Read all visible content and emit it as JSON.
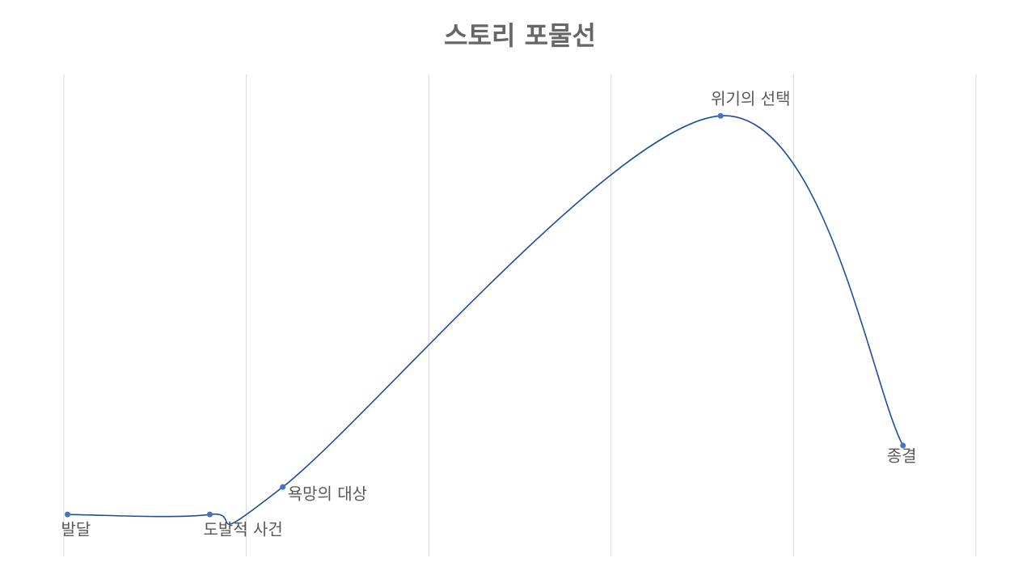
{
  "chart_data": {
    "type": "scatter",
    "title": "스토리 포물선",
    "xlim": [
      0,
      5
    ],
    "xticks": [
      0,
      1,
      2,
      3,
      4,
      5
    ],
    "ylim": [
      0,
      10
    ],
    "grid": true,
    "series": [
      {
        "color": "#1f4e99",
        "marker_color": "#4472c4",
        "x": [
          0.02,
          0.8,
          1.2,
          3.6,
          4.6
        ],
        "values": [
          0.87,
          0.87,
          1.44,
          9.14,
          2.3
        ],
        "point_labels": [
          "발달",
          "도발적 사건",
          "욕망의 대상",
          "위기의 선택",
          "종결"
        ]
      }
    ]
  }
}
